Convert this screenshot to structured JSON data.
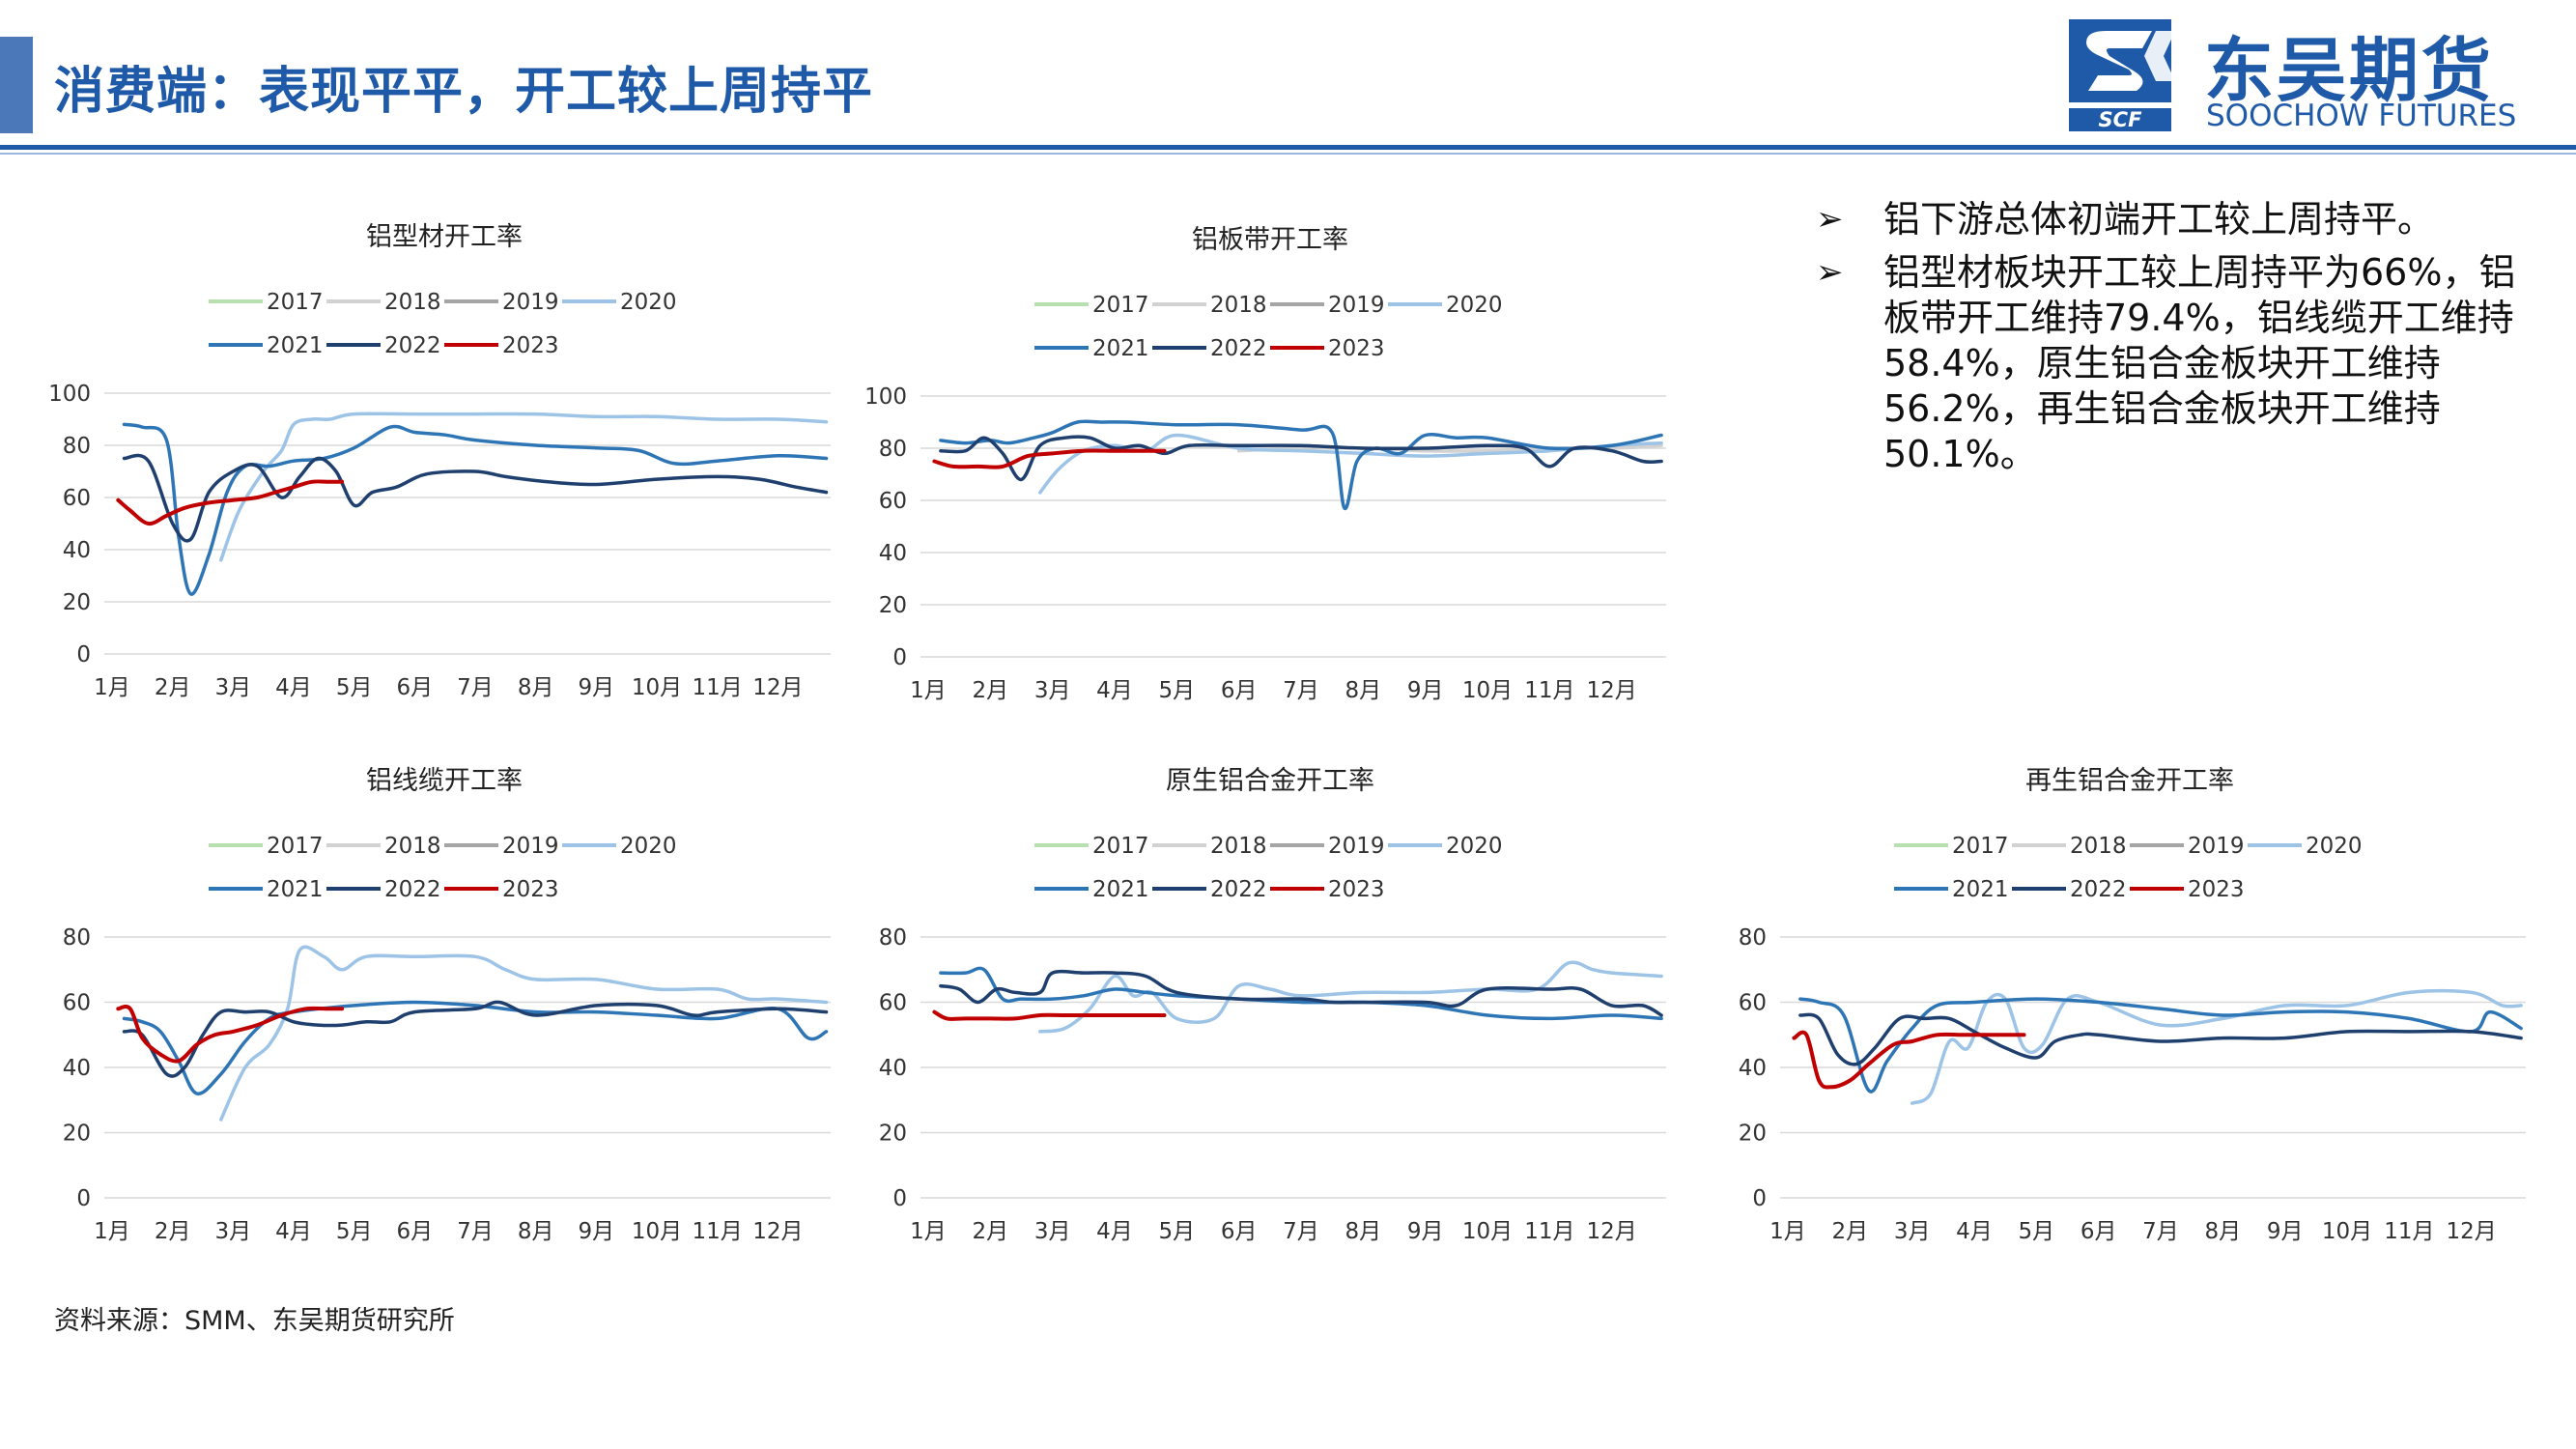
{
  "header": {
    "title": "消费端：表现平平，开工较上周持平",
    "logo_cn": "东吴期货",
    "logo_en": "SOOCHOW FUTURES",
    "logo_mark": "SCF"
  },
  "colors": {
    "2017": "#b7dfb0",
    "2018": "#d2d2d2",
    "2019": "#a5a5a5",
    "2020": "#9dc3e6",
    "2021": "#2e75b6",
    "2022": "#1f3f6e",
    "2023": "#c00000",
    "brand": "#1f5aa8"
  },
  "legend": [
    "2017",
    "2018",
    "2019",
    "2020",
    "2021",
    "2022",
    "2023"
  ],
  "bullets": [
    "铝下游总体初端开工较上周持平。",
    "铝型材板块开工较上周持平为66%，铝板带开工维持79.4%，铝线缆开工维持58.4%，原生铝合金板块开工维持56.2%，再生铝合金板块开工维持50.1%。"
  ],
  "source_note": "资料来源：SMM、东吴期货研究所",
  "chart_data": [
    {
      "type": "line",
      "title": "铝型材开工率",
      "ylim": [
        0,
        100
      ],
      "yticks": [
        0,
        20,
        40,
        60,
        80,
        100
      ],
      "xticks": [
        "1月",
        "2月",
        "3月",
        "4月",
        "5月",
        "6月",
        "7月",
        "8月",
        "9月",
        "10月",
        "11月",
        "12月"
      ],
      "grid": "horizontal",
      "legend_position": "top",
      "series": [
        {
          "name": "2020",
          "x": [
            2.8,
            3.1,
            3.5,
            3.8,
            4.0,
            4.3,
            4.6,
            5.0,
            6,
            7,
            8,
            9,
            10,
            11,
            12,
            12.8
          ],
          "y": [
            36,
            55,
            70,
            78,
            88,
            90,
            90,
            92,
            92,
            92,
            92,
            91,
            91,
            90,
            90,
            89
          ]
        },
        {
          "name": "2021",
          "x": [
            1.2,
            1.5,
            1.9,
            2.1,
            2.3,
            2.6,
            2.9,
            3.2,
            3.6,
            4.0,
            4.5,
            5.0,
            5.6,
            6.0,
            6.5,
            7.0,
            8.0,
            9.0,
            9.7,
            10.3,
            11,
            12,
            12.8
          ],
          "y": [
            88,
            87,
            82,
            45,
            23,
            38,
            62,
            72,
            72,
            74,
            75,
            79,
            87,
            85,
            84,
            82,
            80,
            79,
            78,
            73,
            74,
            76,
            75
          ]
        },
        {
          "name": "2022",
          "x": [
            1.2,
            1.6,
            2.0,
            2.3,
            2.6,
            3.0,
            3.4,
            3.8,
            4.1,
            4.4,
            4.7,
            5.0,
            5.3,
            5.7,
            6.2,
            7.0,
            7.5,
            8.2,
            9.0,
            10.0,
            11.0,
            11.7,
            12.3,
            12.8
          ],
          "y": [
            75,
            74,
            50,
            44,
            62,
            70,
            72,
            60,
            68,
            75,
            70,
            57,
            62,
            64,
            69,
            70,
            68,
            66,
            65,
            67,
            68,
            67,
            64,
            62
          ]
        },
        {
          "name": "2023",
          "x": [
            1.1,
            1.3,
            1.6,
            1.9,
            2.2,
            2.6,
            3.0,
            3.4,
            3.7,
            4.0,
            4.3,
            4.6,
            4.8
          ],
          "y": [
            59,
            55,
            50,
            53,
            56,
            58,
            59,
            60,
            62,
            64,
            66,
            66,
            66
          ]
        }
      ]
    },
    {
      "type": "line",
      "title": "铝板带开工率",
      "ylim": [
        0,
        100
      ],
      "yticks": [
        0,
        20,
        40,
        60,
        80,
        100
      ],
      "xticks": [
        "1月",
        "2月",
        "3月",
        "4月",
        "5月",
        "6月",
        "7月",
        "8月",
        "9月",
        "10月",
        "11月",
        "12月"
      ],
      "grid": "horizontal",
      "legend_position": "top",
      "series": [
        {
          "name": "2018",
          "x": [
            6,
            7,
            8,
            9,
            10,
            11,
            12,
            12.8
          ],
          "y": [
            79,
            80,
            80,
            79,
            79,
            80,
            80,
            81
          ]
        },
        {
          "name": "2020",
          "x": [
            2.8,
            3.1,
            3.5,
            4.0,
            4.5,
            5.0,
            6,
            7,
            8,
            9,
            10,
            11,
            12,
            12.8
          ],
          "y": [
            63,
            72,
            79,
            81,
            79,
            85,
            80,
            79,
            78,
            77,
            78,
            79,
            81,
            82
          ]
        },
        {
          "name": "2021",
          "x": [
            1.2,
            1.6,
            2.0,
            2.3,
            2.7,
            3.0,
            3.4,
            3.8,
            4.2,
            5,
            6,
            7,
            7.5,
            7.7,
            7.9,
            8.2,
            8.6,
            9,
            9.5,
            10,
            11,
            12,
            12.8
          ],
          "y": [
            83,
            82,
            83,
            82,
            84,
            86,
            90,
            90,
            90,
            89,
            89,
            87,
            86,
            57,
            75,
            80,
            78,
            85,
            84,
            84,
            80,
            81,
            85
          ]
        },
        {
          "name": "2022",
          "x": [
            1.2,
            1.6,
            1.9,
            2.2,
            2.5,
            2.8,
            3.2,
            3.6,
            4.0,
            4.4,
            4.8,
            5.2,
            6,
            7,
            8,
            9,
            10,
            10.6,
            11.0,
            11.4,
            12.0,
            12.5,
            12.8
          ],
          "y": [
            79,
            79,
            84,
            78,
            68,
            81,
            84,
            84,
            80,
            81,
            78,
            81,
            81,
            81,
            80,
            80,
            81,
            80,
            73,
            80,
            79,
            75,
            75
          ]
        },
        {
          "name": "2023",
          "x": [
            1.1,
            1.4,
            1.8,
            2.2,
            2.6,
            3.0,
            3.5,
            4.0,
            4.5,
            4.8
          ],
          "y": [
            75,
            73,
            73,
            73,
            77,
            78,
            79,
            79,
            79,
            79
          ]
        }
      ]
    },
    {
      "type": "line",
      "title": "铝线缆开工率",
      "ylim": [
        0,
        80
      ],
      "yticks": [
        0,
        20,
        40,
        60,
        80
      ],
      "xticks": [
        "1月",
        "2月",
        "3月",
        "4月",
        "5月",
        "6月",
        "7月",
        "8月",
        "9月",
        "10月",
        "11月",
        "12月"
      ],
      "grid": "horizontal",
      "legend_position": "top",
      "series": [
        {
          "name": "2020",
          "x": [
            2.8,
            3.2,
            3.6,
            3.9,
            4.1,
            4.5,
            4.8,
            5.2,
            6,
            7,
            7.5,
            8,
            9,
            10,
            11,
            11.5,
            12,
            12.8
          ],
          "y": [
            24,
            40,
            47,
            58,
            76,
            74,
            70,
            74,
            74,
            74,
            70,
            67,
            67,
            64,
            64,
            61,
            61,
            60
          ]
        },
        {
          "name": "2021",
          "x": [
            1.2,
            1.5,
            1.8,
            2.1,
            2.4,
            2.8,
            3.2,
            3.6,
            4,
            5,
            6,
            7,
            8,
            9,
            10,
            11,
            12,
            12.5,
            12.8
          ],
          "y": [
            55,
            54,
            51,
            42,
            32,
            38,
            48,
            55,
            57,
            59,
            60,
            59,
            57,
            57,
            56,
            55,
            58,
            49,
            51
          ]
        },
        {
          "name": "2022",
          "x": [
            1.2,
            1.5,
            1.9,
            2.2,
            2.5,
            2.8,
            3.2,
            3.6,
            4.0,
            4.4,
            4.8,
            5.2,
            5.6,
            6,
            7,
            7.4,
            8,
            9,
            10,
            10.6,
            11,
            12,
            12.8
          ],
          "y": [
            51,
            50,
            38,
            40,
            50,
            57,
            57,
            57,
            54,
            53,
            53,
            54,
            54,
            57,
            58,
            60,
            56,
            59,
            59,
            56,
            57,
            58,
            57
          ]
        },
        {
          "name": "2023",
          "x": [
            1.1,
            1.3,
            1.5,
            1.8,
            2.1,
            2.4,
            2.7,
            3.0,
            3.4,
            3.8,
            4.2,
            4.6,
            4.8
          ],
          "y": [
            58,
            58,
            49,
            44,
            42,
            47,
            50,
            51,
            53,
            56,
            58,
            58,
            58
          ]
        }
      ]
    },
    {
      "type": "line",
      "title": "原生铝合金开工率",
      "ylim": [
        0,
        80
      ],
      "yticks": [
        0,
        20,
        40,
        60,
        80
      ],
      "xticks": [
        "1月",
        "2月",
        "3月",
        "4月",
        "5月",
        "6月",
        "7月",
        "8月",
        "9月",
        "10月",
        "11月",
        "12月"
      ],
      "grid": "horizontal",
      "legend_position": "top",
      "series": [
        {
          "name": "2020",
          "x": [
            2.8,
            3.2,
            3.6,
            4.0,
            4.3,
            4.6,
            5.0,
            5.6,
            6,
            6.5,
            7,
            8,
            9,
            10,
            10.8,
            11.3,
            11.7,
            12,
            12.8
          ],
          "y": [
            51,
            52,
            58,
            68,
            62,
            63,
            55,
            55,
            65,
            64,
            62,
            63,
            63,
            64,
            64,
            72,
            70,
            69,
            68
          ]
        },
        {
          "name": "2021",
          "x": [
            1.2,
            1.6,
            1.9,
            2.2,
            2.5,
            3.0,
            3.5,
            4.0,
            4.5,
            5,
            6,
            7,
            8,
            9,
            10,
            11,
            12,
            12.8
          ],
          "y": [
            69,
            69,
            70,
            61,
            61,
            61,
            62,
            64,
            63,
            62,
            61,
            60,
            60,
            59,
            56,
            55,
            56,
            55
          ]
        },
        {
          "name": "2022",
          "x": [
            1.2,
            1.5,
            1.8,
            2.1,
            2.4,
            2.8,
            3.0,
            3.5,
            4.0,
            4.5,
            5.0,
            6,
            7,
            7.5,
            8,
            9,
            9.5,
            10,
            11,
            11.5,
            12,
            12.5,
            12.8
          ],
          "y": [
            65,
            64,
            60,
            64,
            63,
            63,
            69,
            69,
            69,
            68,
            63,
            61,
            61,
            60,
            60,
            60,
            59,
            64,
            64,
            64,
            59,
            59,
            56
          ]
        },
        {
          "name": "2023",
          "x": [
            1.1,
            1.3,
            1.6,
            2.0,
            2.4,
            2.8,
            3.2,
            3.6,
            4.0,
            4.4,
            4.8
          ],
          "y": [
            57,
            55,
            55,
            55,
            55,
            56,
            56,
            56,
            56,
            56,
            56
          ]
        }
      ]
    },
    {
      "type": "line",
      "title": "再生铝合金开工率",
      "ylim": [
        0,
        80
      ],
      "yticks": [
        0,
        20,
        40,
        60,
        80
      ],
      "xticks": [
        "1月",
        "2月",
        "3月",
        "4月",
        "5月",
        "6月",
        "7月",
        "8月",
        "9月",
        "10月",
        "11月",
        "12月"
      ],
      "grid": "horizontal",
      "legend_position": "top",
      "series": [
        {
          "name": "2020",
          "x": [
            3.0,
            3.3,
            3.6,
            3.9,
            4.2,
            4.5,
            4.8,
            5.1,
            5.5,
            6,
            7,
            8,
            9,
            10,
            11,
            12,
            12.5,
            12.8
          ],
          "y": [
            29,
            32,
            48,
            46,
            60,
            61,
            46,
            47,
            61,
            60,
            53,
            55,
            59,
            59,
            63,
            63,
            59,
            59
          ]
        },
        {
          "name": "2021",
          "x": [
            1.2,
            1.5,
            1.9,
            2.3,
            2.6,
            3.0,
            3.4,
            4,
            5,
            6,
            7,
            8,
            9,
            10,
            11,
            12,
            12.3,
            12.8
          ],
          "y": [
            61,
            60,
            56,
            33,
            42,
            52,
            59,
            60,
            61,
            60,
            58,
            56,
            57,
            57,
            55,
            51,
            57,
            52
          ]
        },
        {
          "name": "2022",
          "x": [
            1.2,
            1.5,
            1.8,
            2.1,
            2.4,
            2.8,
            3.2,
            3.6,
            4.0,
            4.5,
            5.0,
            5.3,
            5.7,
            6,
            7,
            8,
            9,
            10,
            11,
            12,
            12.8
          ],
          "y": [
            56,
            55,
            44,
            41,
            46,
            55,
            55,
            55,
            51,
            46,
            43,
            48,
            50,
            50,
            48,
            49,
            49,
            51,
            51,
            51,
            49
          ]
        },
        {
          "name": "2023",
          "x": [
            1.1,
            1.3,
            1.5,
            1.7,
            2.0,
            2.3,
            2.7,
            3.0,
            3.4,
            3.8,
            4.2,
            4.6,
            4.8
          ],
          "y": [
            49,
            50,
            36,
            34,
            36,
            41,
            47,
            48,
            50,
            50,
            50,
            50,
            50
          ]
        }
      ]
    }
  ]
}
